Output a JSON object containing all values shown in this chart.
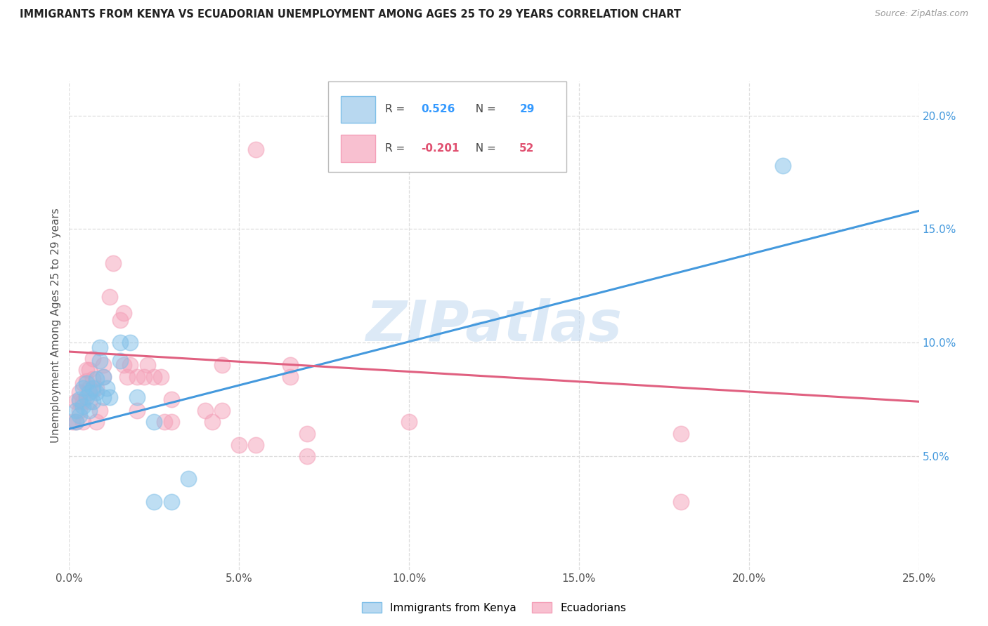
{
  "title": "IMMIGRANTS FROM KENYA VS ECUADORIAN UNEMPLOYMENT AMONG AGES 25 TO 29 YEARS CORRELATION CHART",
  "source": "Source: ZipAtlas.com",
  "ylabel": "Unemployment Among Ages 25 to 29 years",
  "x_tick_vals": [
    0.0,
    0.05,
    0.1,
    0.15,
    0.2,
    0.25
  ],
  "x_tick_labels": [
    "0.0%",
    "5.0%",
    "10.0%",
    "15.0%",
    "20.0%",
    "25.0%"
  ],
  "y_tick_vals": [
    0.05,
    0.1,
    0.15,
    0.2
  ],
  "y_tick_labels": [
    "5.0%",
    "10.0%",
    "15.0%",
    "20.0%"
  ],
  "xlim": [
    0.0,
    0.25
  ],
  "ylim": [
    0.0,
    0.215
  ],
  "blue_color": "#7fbfe8",
  "pink_color": "#f4a0b8",
  "blue_line_color": "#4499dd",
  "pink_line_color": "#e06080",
  "watermark": "ZIPatlas",
  "kenya_scatter": [
    [
      0.002,
      0.065
    ],
    [
      0.002,
      0.07
    ],
    [
      0.003,
      0.068
    ],
    [
      0.003,
      0.075
    ],
    [
      0.004,
      0.072
    ],
    [
      0.004,
      0.08
    ],
    [
      0.005,
      0.076
    ],
    [
      0.005,
      0.082
    ],
    [
      0.006,
      0.07
    ],
    [
      0.006,
      0.078
    ],
    [
      0.007,
      0.074
    ],
    [
      0.007,
      0.08
    ],
    [
      0.008,
      0.078
    ],
    [
      0.008,
      0.084
    ],
    [
      0.009,
      0.092
    ],
    [
      0.009,
      0.098
    ],
    [
      0.01,
      0.076
    ],
    [
      0.01,
      0.085
    ],
    [
      0.011,
      0.08
    ],
    [
      0.012,
      0.076
    ],
    [
      0.015,
      0.1
    ],
    [
      0.015,
      0.092
    ],
    [
      0.018,
      0.1
    ],
    [
      0.02,
      0.076
    ],
    [
      0.025,
      0.065
    ],
    [
      0.025,
      0.03
    ],
    [
      0.03,
      0.03
    ],
    [
      0.035,
      0.04
    ],
    [
      0.21,
      0.178
    ]
  ],
  "ecuador_scatter": [
    [
      0.001,
      0.065
    ],
    [
      0.002,
      0.065
    ],
    [
      0.002,
      0.074
    ],
    [
      0.003,
      0.07
    ],
    [
      0.003,
      0.078
    ],
    [
      0.003,
      0.074
    ],
    [
      0.004,
      0.082
    ],
    [
      0.004,
      0.074
    ],
    [
      0.004,
      0.065
    ],
    [
      0.005,
      0.088
    ],
    [
      0.005,
      0.083
    ],
    [
      0.006,
      0.08
    ],
    [
      0.006,
      0.088
    ],
    [
      0.006,
      0.074
    ],
    [
      0.007,
      0.093
    ],
    [
      0.007,
      0.084
    ],
    [
      0.007,
      0.079
    ],
    [
      0.008,
      0.08
    ],
    [
      0.008,
      0.065
    ],
    [
      0.009,
      0.07
    ],
    [
      0.01,
      0.085
    ],
    [
      0.01,
      0.09
    ],
    [
      0.012,
      0.12
    ],
    [
      0.013,
      0.135
    ],
    [
      0.015,
      0.11
    ],
    [
      0.016,
      0.113
    ],
    [
      0.016,
      0.09
    ],
    [
      0.017,
      0.085
    ],
    [
      0.018,
      0.09
    ],
    [
      0.02,
      0.085
    ],
    [
      0.02,
      0.07
    ],
    [
      0.022,
      0.085
    ],
    [
      0.023,
      0.09
    ],
    [
      0.025,
      0.085
    ],
    [
      0.027,
      0.085
    ],
    [
      0.028,
      0.065
    ],
    [
      0.03,
      0.065
    ],
    [
      0.03,
      0.075
    ],
    [
      0.04,
      0.07
    ],
    [
      0.042,
      0.065
    ],
    [
      0.045,
      0.09
    ],
    [
      0.045,
      0.07
    ],
    [
      0.05,
      0.055
    ],
    [
      0.055,
      0.055
    ],
    [
      0.055,
      0.185
    ],
    [
      0.065,
      0.085
    ],
    [
      0.065,
      0.09
    ],
    [
      0.07,
      0.05
    ],
    [
      0.07,
      0.06
    ],
    [
      0.1,
      0.065
    ],
    [
      0.18,
      0.06
    ],
    [
      0.18,
      0.03
    ]
  ],
  "blue_trendline": [
    [
      0.0,
      0.062
    ],
    [
      0.25,
      0.158
    ]
  ],
  "pink_trendline": [
    [
      0.0,
      0.096
    ],
    [
      0.25,
      0.074
    ]
  ],
  "leg_r1": "R = ",
  "leg_v1": "0.526",
  "leg_n1_label": "N = ",
  "leg_n1": "29",
  "leg_r2": "R = ",
  "leg_v2": "-0.201",
  "leg_n2_label": "N = ",
  "leg_n2": "52",
  "blue_leg_face": "#b8d8f0",
  "blue_leg_edge": "#7fbfe8",
  "pink_leg_face": "#f8c0d0",
  "pink_leg_edge": "#f4a0b8",
  "leg_text_color": "#444444",
  "leg_blue_val_color": "#3399ff",
  "leg_pink_val_color": "#e05070",
  "bottom_legend_kenya": "Immigrants from Kenya",
  "bottom_legend_ecuador": "Ecuadorians"
}
